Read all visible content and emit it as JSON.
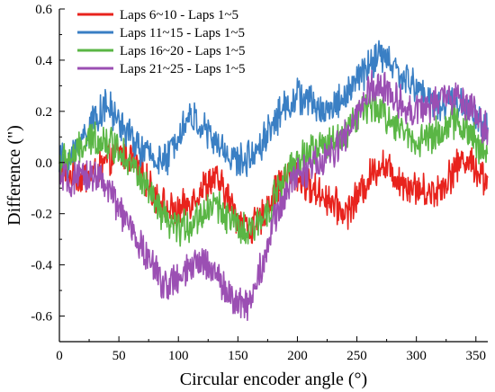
{
  "chart_data": {
    "type": "line",
    "title": "",
    "xlabel": "Circular encoder angle (°)",
    "ylabel": "Difference (\")",
    "xlim": [
      0,
      360
    ],
    "ylim": [
      -0.7,
      0.6
    ],
    "xticks": [
      0,
      50,
      100,
      150,
      200,
      250,
      300,
      350
    ],
    "yticks": [
      -0.6,
      -0.4,
      -0.2,
      0.0,
      0.2,
      0.4,
      0.6
    ],
    "xtick_labels": [
      "0",
      "50",
      "100",
      "150",
      "200",
      "250",
      "300",
      "350"
    ],
    "ytick_labels": [
      "-0.6",
      "-0.4",
      "-0.2",
      "0.0",
      "0.2",
      "0.4",
      "0.6"
    ],
    "grid": false,
    "legend_position": "top-left",
    "noise_amplitude": 0.06,
    "series": [
      {
        "name": "Laps 6~10 - Laps 1~5",
        "color": "#e8231d",
        "x": [
          0,
          10,
          20,
          30,
          40,
          50,
          60,
          70,
          80,
          90,
          100,
          110,
          120,
          130,
          140,
          150,
          160,
          170,
          180,
          190,
          200,
          210,
          220,
          230,
          240,
          250,
          260,
          270,
          280,
          290,
          300,
          310,
          320,
          330,
          340,
          350,
          360
        ],
        "y": [
          -0.02,
          -0.05,
          -0.06,
          -0.04,
          0.0,
          0.04,
          0.02,
          -0.05,
          -0.12,
          -0.18,
          -0.2,
          -0.15,
          -0.1,
          -0.06,
          -0.12,
          -0.22,
          -0.26,
          -0.22,
          -0.12,
          -0.06,
          -0.05,
          -0.1,
          -0.12,
          -0.16,
          -0.2,
          -0.14,
          -0.06,
          0.0,
          -0.04,
          -0.08,
          -0.1,
          -0.12,
          -0.1,
          -0.04,
          0.02,
          -0.02,
          -0.08
        ]
      },
      {
        "name": "Laps 11~15 - Laps 1~5",
        "color": "#3a7fc4",
        "x": [
          0,
          10,
          20,
          30,
          40,
          50,
          60,
          70,
          80,
          90,
          100,
          110,
          120,
          130,
          140,
          150,
          160,
          170,
          180,
          190,
          200,
          210,
          220,
          230,
          240,
          250,
          260,
          270,
          280,
          290,
          300,
          310,
          320,
          330,
          340,
          350,
          360
        ],
        "y": [
          0.0,
          0.02,
          0.1,
          0.18,
          0.22,
          0.16,
          0.1,
          0.04,
          0.02,
          0.0,
          0.12,
          0.18,
          0.14,
          0.08,
          0.04,
          0.0,
          0.02,
          0.08,
          0.16,
          0.22,
          0.26,
          0.24,
          0.2,
          0.22,
          0.26,
          0.32,
          0.38,
          0.42,
          0.38,
          0.32,
          0.3,
          0.24,
          0.22,
          0.24,
          0.22,
          0.18,
          0.12
        ]
      },
      {
        "name": "Laps 16~20 - Laps 1~5",
        "color": "#5ab645",
        "x": [
          0,
          10,
          20,
          30,
          40,
          50,
          60,
          70,
          80,
          90,
          100,
          110,
          120,
          130,
          140,
          150,
          160,
          170,
          180,
          190,
          200,
          210,
          220,
          230,
          240,
          250,
          260,
          270,
          280,
          290,
          300,
          310,
          320,
          330,
          340,
          350,
          360
        ],
        "y": [
          0.0,
          0.02,
          0.06,
          0.1,
          0.08,
          0.06,
          0.0,
          -0.08,
          -0.16,
          -0.24,
          -0.26,
          -0.24,
          -0.2,
          -0.16,
          -0.2,
          -0.26,
          -0.28,
          -0.22,
          -0.14,
          -0.06,
          0.0,
          0.04,
          0.06,
          0.08,
          0.12,
          0.18,
          0.22,
          0.2,
          0.16,
          0.12,
          0.08,
          0.1,
          0.12,
          0.16,
          0.14,
          0.08,
          0.02
        ]
      },
      {
        "name": "Laps 21~25 - Laps 1~5",
        "color": "#9b4fb3",
        "x": [
          0,
          10,
          20,
          30,
          40,
          50,
          60,
          70,
          80,
          90,
          100,
          110,
          120,
          130,
          140,
          150,
          160,
          170,
          180,
          190,
          200,
          210,
          220,
          230,
          240,
          250,
          260,
          270,
          280,
          290,
          300,
          310,
          320,
          330,
          340,
          350,
          360
        ],
        "y": [
          -0.06,
          -0.08,
          -0.06,
          -0.04,
          -0.1,
          -0.18,
          -0.26,
          -0.34,
          -0.42,
          -0.48,
          -0.46,
          -0.42,
          -0.38,
          -0.42,
          -0.5,
          -0.56,
          -0.54,
          -0.4,
          -0.24,
          -0.12,
          -0.04,
          -0.02,
          0.0,
          0.04,
          0.1,
          0.18,
          0.28,
          0.3,
          0.26,
          0.22,
          0.2,
          0.22,
          0.24,
          0.26,
          0.24,
          0.18,
          0.12
        ]
      }
    ]
  }
}
